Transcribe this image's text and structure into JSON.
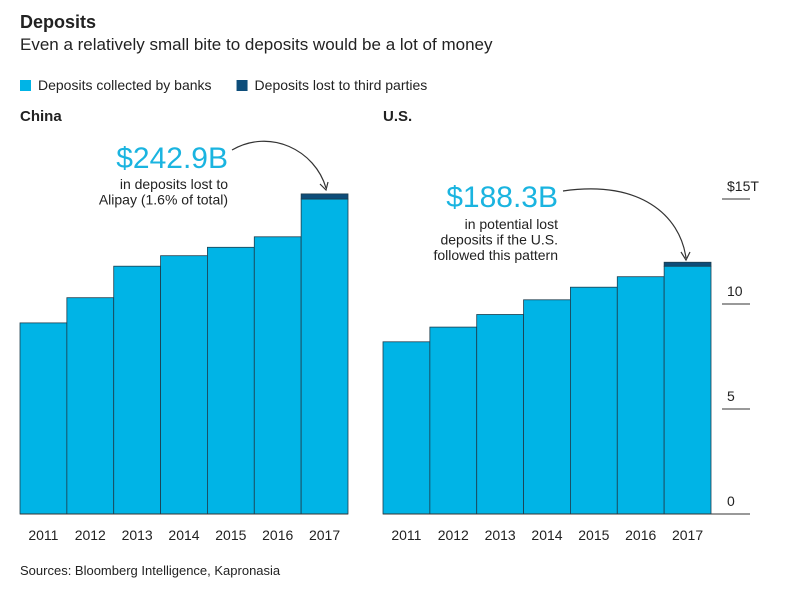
{
  "title": "Deposits",
  "subtitle": "Even a relatively small bite to deposits would be a lot of money",
  "source": "Sources: Bloomberg Intelligence, Kapronasia",
  "chart_data": [
    {
      "type": "bar",
      "stacked": true,
      "title": "China",
      "categories": [
        "2011",
        "2012",
        "2013",
        "2014",
        "2015",
        "2016",
        "2017"
      ],
      "series": [
        {
          "name": "Deposits collected by banks",
          "color": "#00b4e6",
          "values": [
            9.1,
            10.3,
            11.8,
            12.3,
            12.7,
            13.2,
            15.0
          ]
        },
        {
          "name": "Deposits lost to third parties",
          "color": "#0d4d7a",
          "values": [
            null,
            null,
            null,
            null,
            null,
            null,
            0.2429
          ]
        }
      ],
      "ylim": [
        0,
        17
      ],
      "annotation": {
        "headline": "$242.9B",
        "lines": [
          "in deposits lost to",
          "Alipay (1.6% of total)"
        ]
      }
    },
    {
      "type": "bar",
      "stacked": true,
      "title": "U.S.",
      "categories": [
        "2011",
        "2012",
        "2013",
        "2014",
        "2015",
        "2016",
        "2017"
      ],
      "series": [
        {
          "name": "Deposits collected by banks",
          "color": "#00b4e6",
          "values": [
            8.2,
            8.9,
            9.5,
            10.2,
            10.8,
            11.3,
            11.8
          ]
        },
        {
          "name": "Deposits lost to third parties",
          "color": "#0d4d7a",
          "values": [
            null,
            null,
            null,
            null,
            null,
            null,
            0.1883
          ]
        }
      ],
      "ylim": [
        0,
        17
      ],
      "yticks": [
        0,
        5,
        10,
        {
          "value": 15,
          "label": "$15T"
        }
      ],
      "annotation": {
        "headline": "$188.3B",
        "lines": [
          "in potential lost",
          "deposits if the U.S.",
          "followed this pattern"
        ]
      }
    }
  ]
}
